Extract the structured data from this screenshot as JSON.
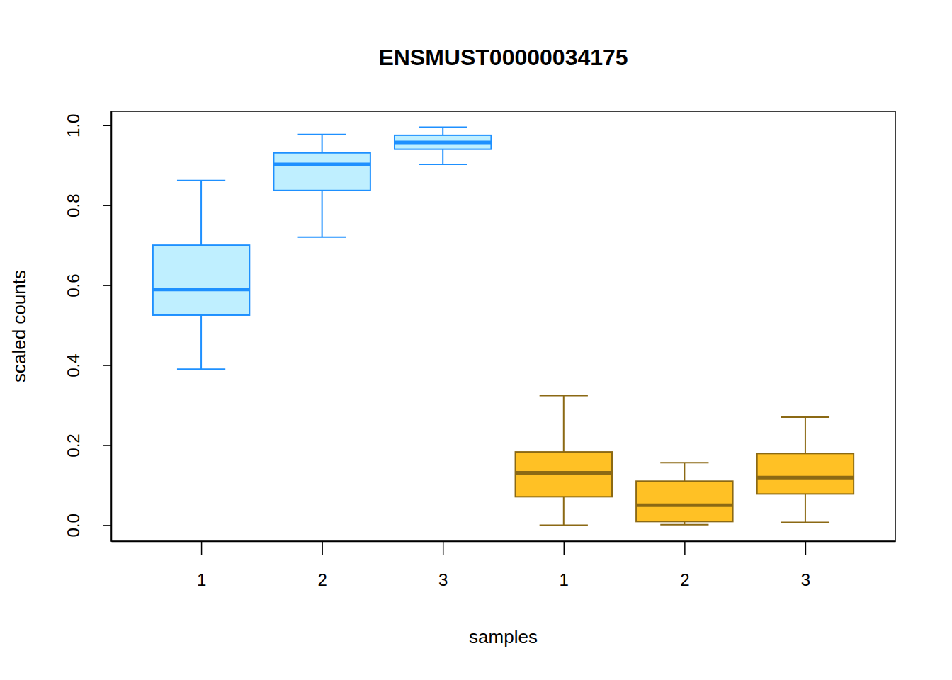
{
  "chart_data": {
    "type": "box",
    "title": "ENSMUST00000034175",
    "x_label": "samples",
    "y_label": "scaled counts",
    "categories": [
      "1",
      "2",
      "3",
      "1",
      "2",
      "3"
    ],
    "boxes": [
      {
        "low": 0.39,
        "q1": 0.525,
        "median": 0.589,
        "q3": 0.7,
        "high": 0.862
      },
      {
        "low": 0.72,
        "q1": 0.837,
        "median": 0.902,
        "q3": 0.931,
        "high": 0.977
      },
      {
        "low": 0.902,
        "q1": 0.94,
        "median": 0.957,
        "q3": 0.975,
        "high": 0.995
      },
      {
        "low": 0.0,
        "q1": 0.071,
        "median": 0.131,
        "q3": 0.183,
        "high": 0.324
      },
      {
        "low": 0.001,
        "q1": 0.009,
        "median": 0.05,
        "q3": 0.11,
        "high": 0.156
      },
      {
        "low": 0.007,
        "q1": 0.078,
        "median": 0.119,
        "q3": 0.179,
        "high": 0.27
      }
    ],
    "colors": [
      "#bfefff",
      "#bfefff",
      "#bfefff",
      "#ffc125",
      "#ffc125",
      "#ffc125"
    ],
    "ylim": [
      -0.04,
      1.035
    ],
    "yticks": [
      {
        "value": 0,
        "label": "0.0"
      },
      0.2,
      0.4,
      0.6,
      0.8,
      {
        "value": 1,
        "label": "1.0"
      }
    ]
  }
}
